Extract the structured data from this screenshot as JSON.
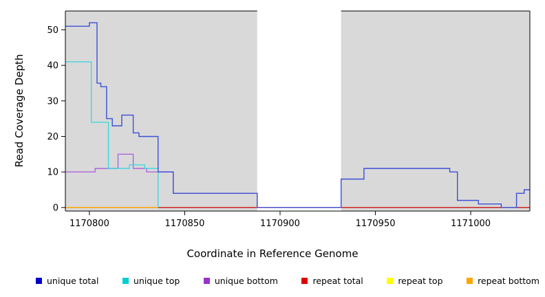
{
  "chart_data": {
    "type": "line",
    "subtype": "step",
    "title": "",
    "xlabel": "Coordinate in Reference Genome",
    "ylabel": "Read Coverage Depth",
    "xlim": [
      1170787.4,
      1171031
    ],
    "ylim": [
      0,
      52
    ],
    "ylim_draw": [
      -1,
      55.3
    ],
    "x_ticks": [
      1170800,
      1170850,
      1170900,
      1170950,
      1171000
    ],
    "y_ticks": [
      0,
      10,
      20,
      30,
      40,
      50
    ],
    "grid": false,
    "plot_background": "#ffffff",
    "background_regions": [
      {
        "x0": 1170787.4,
        "x1": 1170888,
        "color": "#d9d9d9"
      },
      {
        "x0": 1170932,
        "x1": 1171031,
        "color": "#d9d9d9"
      }
    ],
    "series": [
      {
        "name": "repeat total",
        "color": "#cc1111",
        "x_end": 1171031,
        "points": [
          [
            1170787.4,
            0
          ]
        ]
      },
      {
        "name": "repeat top",
        "color": "#ffff00",
        "x_end": 1170836,
        "points": [
          [
            1170787.4,
            0
          ]
        ]
      },
      {
        "name": "repeat bottom",
        "color": "#ff9d00",
        "x_end": 1170836,
        "points": [
          [
            1170787.4,
            0
          ]
        ]
      },
      {
        "name": "unique bottom",
        "color": "#aa66dd",
        "x_end": 1170888,
        "points": [
          [
            1170787.4,
            10
          ],
          [
            1170803,
            11
          ],
          [
            1170815,
            15
          ],
          [
            1170823,
            11
          ],
          [
            1170830,
            10
          ],
          [
            1170844,
            4
          ],
          [
            1170888,
            0
          ]
        ]
      },
      {
        "name": "unique top",
        "color": "#40d8dd",
        "x_end": 1170836,
        "points": [
          [
            1170787.4,
            41
          ],
          [
            1170801,
            24
          ],
          [
            1170810,
            11
          ],
          [
            1170821,
            12
          ],
          [
            1170829,
            11
          ],
          [
            1170836,
            0
          ]
        ]
      },
      {
        "name": "unique total",
        "color": "#3a4fd8",
        "x_end": 1171031,
        "points": [
          [
            1170787.4,
            51
          ],
          [
            1170800,
            52
          ],
          [
            1170804,
            35
          ],
          [
            1170806,
            34
          ],
          [
            1170809,
            25
          ],
          [
            1170812,
            23
          ],
          [
            1170817,
            26
          ],
          [
            1170823,
            21
          ],
          [
            1170826,
            20
          ],
          [
            1170836,
            10
          ],
          [
            1170844,
            4
          ],
          [
            1170888,
            0
          ],
          [
            1170932,
            8
          ],
          [
            1170944,
            11
          ],
          [
            1170989,
            10
          ],
          [
            1170993,
            2
          ],
          [
            1171004,
            1
          ],
          [
            1171016,
            0
          ],
          [
            1171024,
            4
          ],
          [
            1171028,
            5
          ]
        ]
      }
    ]
  },
  "legend": {
    "items": [
      {
        "label": "unique total",
        "color": "#0000cd"
      },
      {
        "label": "unique top",
        "color": "#00ced1"
      },
      {
        "label": "unique bottom",
        "color": "#9932cc"
      },
      {
        "label": "repeat total",
        "color": "#dd0000"
      },
      {
        "label": "repeat top",
        "color": "#ffff00"
      },
      {
        "label": "repeat bottom",
        "color": "#ffa500"
      }
    ]
  }
}
